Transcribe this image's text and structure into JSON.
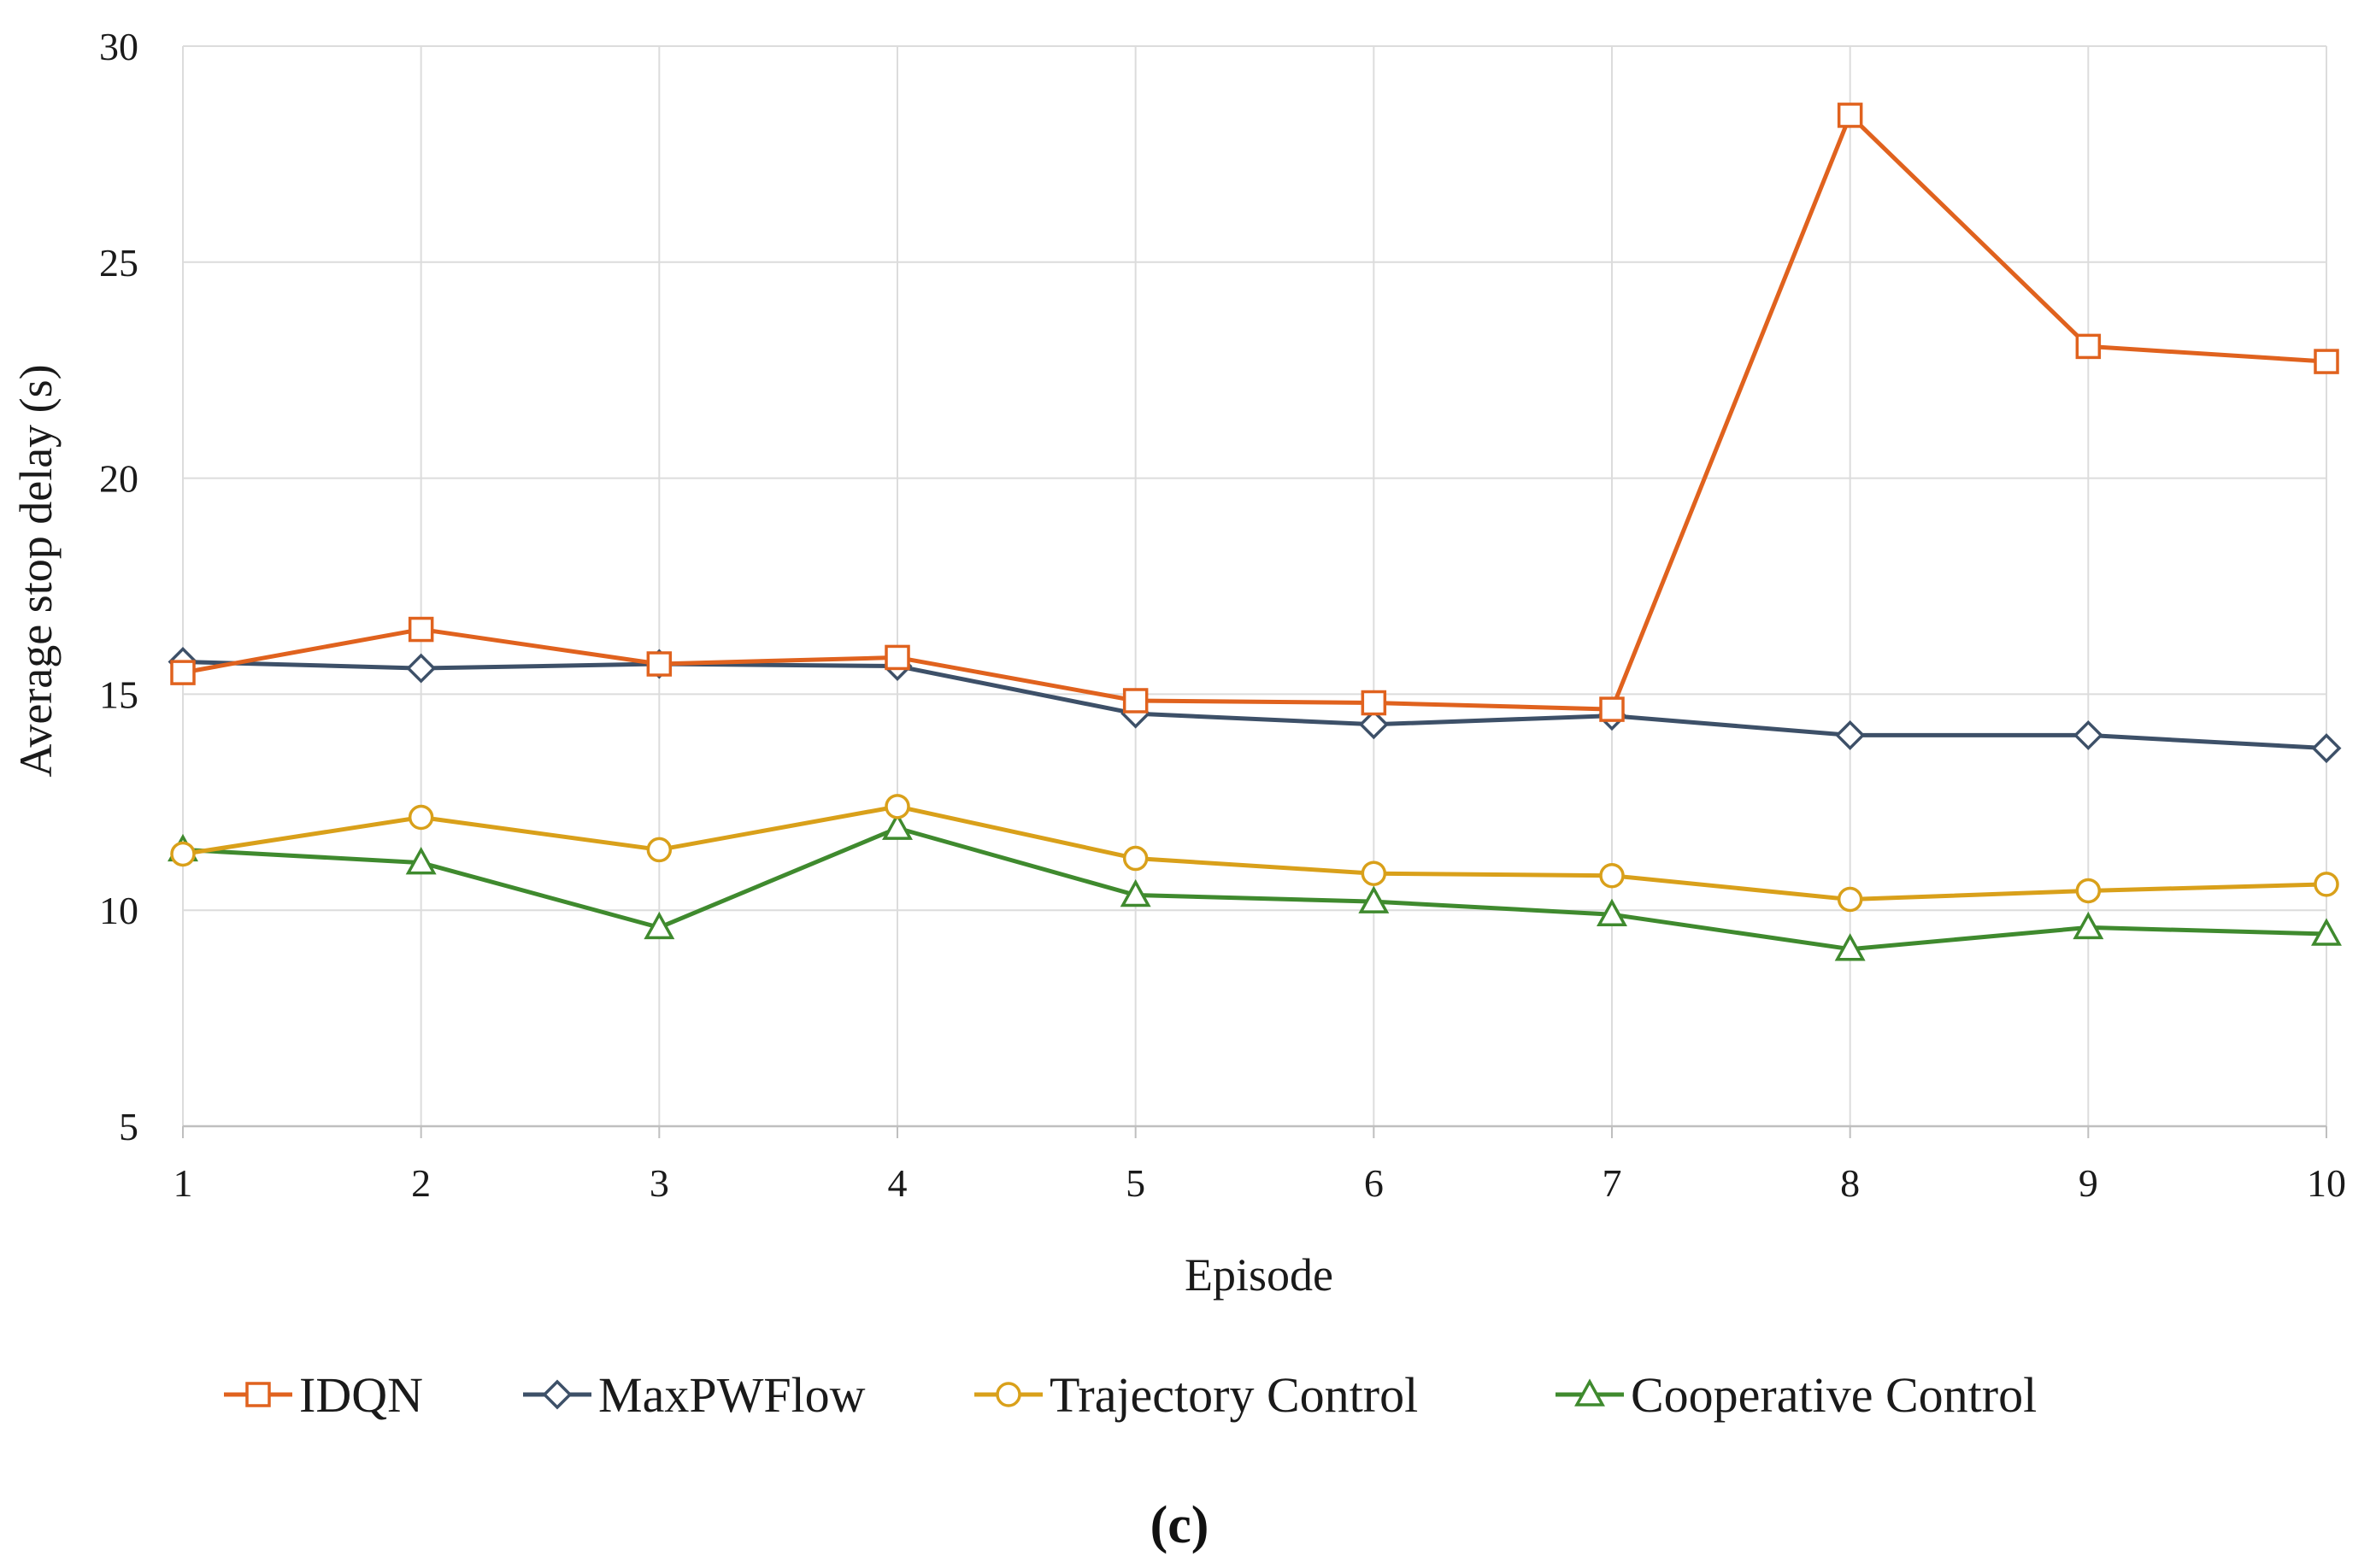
{
  "chart_data": {
    "type": "line",
    "title": "",
    "xlabel": "Episode",
    "ylabel": "Average stop delay (s)",
    "x": [
      1,
      2,
      3,
      4,
      5,
      6,
      7,
      8,
      9,
      10
    ],
    "xlim": [
      1,
      10
    ],
    "ylim": [
      5,
      30
    ],
    "yticks": [
      5,
      10,
      15,
      20,
      25,
      30
    ],
    "grid": "vertical and horizontal",
    "legend_position": "bottom",
    "caption": "(c)",
    "series": [
      {
        "name": "IDQN",
        "color": "#E0621E",
        "marker": "square",
        "values": [
          15.5,
          16.5,
          15.7,
          15.85,
          14.85,
          14.8,
          14.65,
          28.4,
          23.05,
          22.7
        ]
      },
      {
        "name": "MaxPWFlow",
        "color": "#3D5068",
        "marker": "diamond",
        "values": [
          15.75,
          15.6,
          15.7,
          15.65,
          14.55,
          14.3,
          14.5,
          14.05,
          14.05,
          13.75
        ]
      },
      {
        "name": "Trajectory Control",
        "color": "#D9A01A",
        "marker": "circle",
        "values": [
          11.3,
          12.15,
          11.4,
          12.4,
          11.2,
          10.85,
          10.8,
          10.25,
          10.45,
          10.6
        ]
      },
      {
        "name": "Cooperative Control",
        "color": "#3F8A2E",
        "marker": "triangle",
        "values": [
          11.4,
          11.1,
          9.6,
          11.9,
          10.35,
          10.2,
          9.9,
          9.1,
          9.6,
          9.45
        ]
      }
    ]
  }
}
